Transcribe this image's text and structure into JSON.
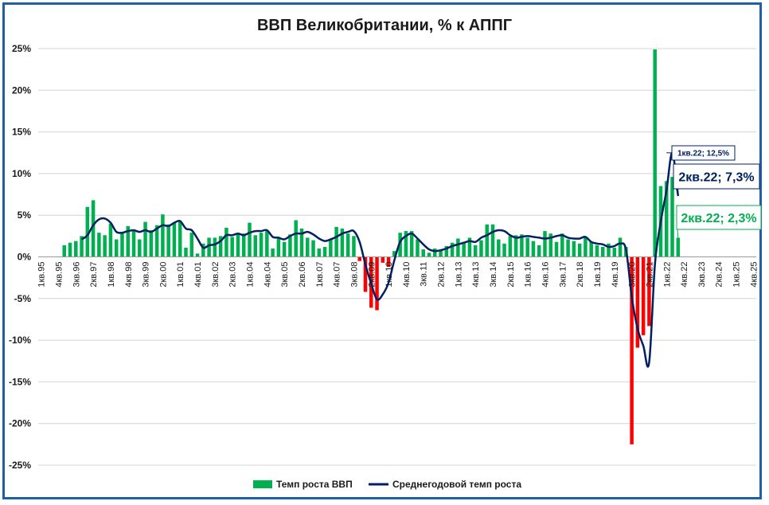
{
  "chart_data": {
    "type": "bar+line",
    "title": "ВВП Великобритании, % к АППГ",
    "ylim": [
      -25,
      25
    ],
    "yticks": [
      25,
      20,
      15,
      10,
      5,
      0,
      -5,
      -10,
      -15,
      -20,
      -25
    ],
    "ytick_labels": [
      "25%",
      "20%",
      "15%",
      "10%",
      "5%",
      "0%",
      "-5%",
      "-10%",
      "-15%",
      "-20%",
      "-25%"
    ],
    "start_quarter": "1кв.95",
    "xtick_labels": [
      "1кв.95",
      "4кв.95",
      "3кв.96",
      "2кв.97",
      "1кв.98",
      "4кв.98",
      "3кв.99",
      "2кв.00",
      "1кв.01",
      "4кв.01",
      "3кв.02",
      "2кв.03",
      "1кв.04",
      "4кв.04",
      "3кв.05",
      "2кв.06",
      "1кв.07",
      "4кв.07",
      "3кв.08",
      "2кв.09",
      "1кв.10",
      "4кв.10",
      "3кв.11",
      "2кв.12",
      "1кв.13",
      "4кв.13",
      "3кв.14",
      "2кв.15",
      "1кв.16",
      "4кв.16",
      "3кв.17",
      "2кв.18",
      "1кв.19",
      "4кв.19",
      "3кв.20",
      "2кв.21",
      "1кв.22",
      "4кв.22",
      "3кв.23",
      "2кв.24",
      "1кв.25",
      "4кв.25"
    ],
    "legend_position": "bottom",
    "grid": "horizontal",
    "colors": {
      "positive": "#00b050",
      "negative": "#ff0000",
      "line": "#002060",
      "frame": "#1f5fa8"
    },
    "series": [
      {
        "name": "Темп роста ВВП",
        "kind": "bar",
        "values": [
          null,
          null,
          null,
          null,
          1.4,
          1.7,
          1.9,
          2.5,
          6.0,
          6.8,
          2.9,
          2.6,
          4.0,
          2.1,
          3.0,
          3.7,
          3.2,
          2.1,
          4.2,
          3.2,
          3.8,
          5.1,
          3.9,
          4.1,
          4.3,
          1.1,
          2.9,
          0.4,
          1.6,
          2.3,
          2.3,
          2.5,
          3.5,
          2.4,
          2.8,
          2.8,
          4.1,
          2.6,
          2.9,
          3.1,
          1.0,
          2.2,
          1.8,
          2.7,
          4.4,
          3.4,
          2.3,
          2.0,
          1.0,
          1.2,
          2.1,
          3.6,
          3.4,
          2.8,
          2.5,
          -0.5,
          -4.2,
          -6.1,
          -6.4,
          -0.7,
          -1.2,
          0.7,
          2.9,
          3.1,
          3.1,
          2.1,
          0.9,
          0.5,
          1.0,
          0.8,
          1.3,
          1.7,
          2.2,
          1.8,
          2.3,
          1.4,
          2.0,
          3.9,
          3.9,
          2.1,
          1.6,
          2.5,
          2.6,
          2.7,
          2.3,
          1.9,
          1.4,
          3.1,
          2.8,
          1.8,
          2.8,
          2.1,
          1.9,
          1.6,
          2.3,
          1.8,
          1.4,
          1.2,
          1.6,
          1.1,
          2.3,
          1.2,
          -22.5,
          -10.9,
          -9.4,
          -8.3,
          24.9,
          8.5,
          9.1,
          9.6,
          2.3
        ]
      },
      {
        "name": "Среднегодовой темп роста",
        "kind": "line",
        "values": [
          null,
          null,
          null,
          null,
          null,
          null,
          null,
          2.1,
          2.6,
          3.8,
          4.5,
          4.6,
          4.1,
          3.0,
          2.9,
          3.1,
          3.2,
          3.0,
          3.2,
          3.0,
          3.4,
          3.8,
          3.7,
          4.1,
          4.3,
          3.4,
          3.2,
          2.2,
          1.1,
          1.4,
          1.5,
          1.9,
          2.6,
          2.6,
          2.8,
          2.6,
          2.9,
          3.1,
          3.1,
          3.2,
          2.4,
          2.3,
          2.1,
          2.5,
          2.8,
          2.8,
          3.0,
          2.7,
          2.2,
          1.9,
          2.1,
          2.4,
          2.8,
          3.0,
          3.1,
          1.8,
          -0.9,
          -3.2,
          -5.1,
          -4.5,
          -3.1,
          -0.4,
          1.8,
          2.5,
          2.8,
          2.2,
          1.5,
          0.9,
          0.7,
          0.8,
          1.0,
          1.3,
          1.5,
          1.7,
          1.9,
          1.8,
          2.3,
          2.6,
          3.0,
          3.2,
          3.1,
          2.6,
          2.3,
          2.4,
          2.5,
          2.4,
          2.3,
          2.2,
          2.3,
          2.5,
          2.6,
          2.3,
          2.2,
          2.2,
          2.4,
          1.8,
          1.6,
          1.5,
          1.2,
          1.3,
          1.6,
          0.9,
          -4.8,
          -8.6,
          -10.7,
          -12.7,
          -0.9,
          4.2,
          8.0,
          12.5,
          7.3
        ]
      }
    ],
    "annotations": [
      {
        "label": "1кв.22; 12,5%",
        "series": "line",
        "quarter": "1кв.22",
        "value": 12.5
      },
      {
        "label": "2кв.22; 7,3%",
        "series": "line",
        "quarter": "2кв.22",
        "value": 7.3
      },
      {
        "label": "2кв.22; 2,3%",
        "series": "bar",
        "quarter": "2кв.22",
        "value": 2.3
      }
    ]
  },
  "legend": {
    "bar_label": "Темп роста ВВП",
    "line_label": "Среднегодовой темп роста"
  }
}
